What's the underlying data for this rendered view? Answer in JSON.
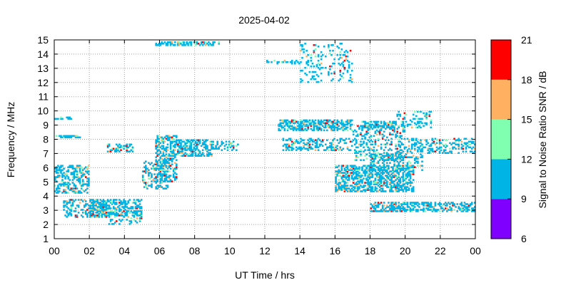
{
  "chart_data": {
    "type": "heatmap",
    "title": "2025-04-02",
    "xlabel": "UT Time / hrs",
    "ylabel": "Frequency / MHz",
    "colorbar_label": "Signal to Noise Ratio SNR / dB",
    "xlim": [
      0,
      24
    ],
    "ylim": [
      1,
      15
    ],
    "x_ticks": [
      "00",
      "02",
      "04",
      "06",
      "08",
      "10",
      "12",
      "14",
      "16",
      "18",
      "20",
      "22",
      "00"
    ],
    "y_ticks": [
      "1",
      "2",
      "3",
      "4",
      "5",
      "6",
      "7",
      "8",
      "9",
      "10",
      "11",
      "12",
      "13",
      "14",
      "15"
    ],
    "grid": true,
    "colorbar": {
      "range": [
        6,
        21
      ],
      "ticks": [
        "6",
        "9",
        "12",
        "15",
        "18",
        "21"
      ],
      "bands": [
        {
          "from": 6,
          "to": 9,
          "color": "#8000ff"
        },
        {
          "from": 9,
          "to": 12,
          "color": "#00b4e6"
        },
        {
          "from": 12,
          "to": 15,
          "color": "#80ffb0"
        },
        {
          "from": 15,
          "to": 18,
          "color": "#ffb060"
        },
        {
          "from": 18,
          "to": 21,
          "color": "#ff0000"
        }
      ]
    },
    "series": [
      {
        "x": [
          0,
          2
        ],
        "y": [
          4.2,
          6.2
        ],
        "density": 0.45
      },
      {
        "x": [
          0,
          1.5
        ],
        "y": [
          8.1,
          8.3
        ],
        "density": 0.6
      },
      {
        "x": [
          0,
          1
        ],
        "y": [
          9.4,
          9.6
        ],
        "density": 0.5
      },
      {
        "x": [
          0.5,
          3
        ],
        "y": [
          2.5,
          3.8
        ],
        "density": 0.35
      },
      {
        "x": [
          2,
          5
        ],
        "y": [
          2.6,
          3.8
        ],
        "density": 0.5
      },
      {
        "x": [
          3,
          5
        ],
        "y": [
          2,
          3
        ],
        "density": 0.2
      },
      {
        "x": [
          3,
          4.5
        ],
        "y": [
          7.1,
          7.7
        ],
        "density": 0.5
      },
      {
        "x": [
          5,
          6.5
        ],
        "y": [
          4.5,
          6.5
        ],
        "density": 0.35
      },
      {
        "x": [
          5.8,
          7
        ],
        "y": [
          5,
          8.3
        ],
        "density": 0.5
      },
      {
        "x": [
          7,
          9
        ],
        "y": [
          6.8,
          8
        ],
        "density": 0.55
      },
      {
        "x": [
          9,
          10.5
        ],
        "y": [
          7.2,
          7.9
        ],
        "density": 0.3
      },
      {
        "x": [
          5.8,
          9.5
        ],
        "y": [
          14.6,
          15
        ],
        "density": 0.5
      },
      {
        "x": [
          12,
          14
        ],
        "y": [
          13.3,
          13.6
        ],
        "density": 0.4
      },
      {
        "x": [
          12.8,
          17
        ],
        "y": [
          8.6,
          9.4
        ],
        "density": 0.6
      },
      {
        "x": [
          13,
          17
        ],
        "y": [
          7.2,
          8.1
        ],
        "density": 0.35
      },
      {
        "x": [
          16,
          20.5
        ],
        "y": [
          4.3,
          6.2
        ],
        "density": 0.55
      },
      {
        "x": [
          17,
          20
        ],
        "y": [
          6.5,
          9
        ],
        "density": 0.3
      },
      {
        "x": [
          17.5,
          19.5
        ],
        "y": [
          8.8,
          9.3
        ],
        "density": 0.55
      },
      {
        "x": [
          18,
          21
        ],
        "y": [
          5.8,
          7
        ],
        "density": 0.3
      },
      {
        "x": [
          19.5,
          21.5
        ],
        "y": [
          8.8,
          10
        ],
        "density": 0.25
      },
      {
        "x": [
          18,
          24
        ],
        "y": [
          2.9,
          3.6
        ],
        "density": 0.5
      },
      {
        "x": [
          20,
          24
        ],
        "y": [
          7,
          8.1
        ],
        "density": 0.3
      },
      {
        "x": [
          14,
          17
        ],
        "y": [
          12,
          14.8
        ],
        "density": 0.15
      }
    ]
  }
}
